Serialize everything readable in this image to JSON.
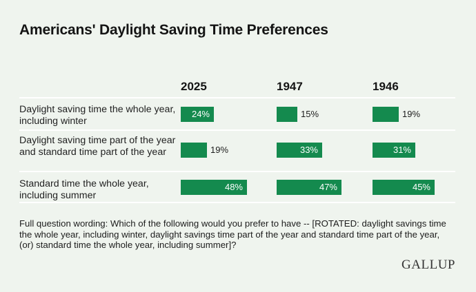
{
  "title": "Americans' Daylight Saving Time Preferences",
  "chart_data": {
    "type": "bar",
    "title": "Americans' Daylight Saving Time Preferences",
    "columns": [
      "2025",
      "1947",
      "1946"
    ],
    "categories": [
      "Daylight saving time the whole year, including winter",
      "Daylight saving time part of the year and standard time part of the year",
      "Standard time the whole year, including summer"
    ],
    "series": [
      {
        "name": "2025",
        "values": [
          24,
          19,
          48
        ]
      },
      {
        "name": "1947",
        "values": [
          15,
          33,
          47
        ]
      },
      {
        "name": "1946",
        "values": [
          19,
          31,
          45
        ]
      }
    ],
    "value_labels": [
      [
        "24%",
        "19%",
        "48%"
      ],
      [
        "15%",
        "33%",
        "47%"
      ],
      [
        "19%",
        "31%",
        "45%"
      ]
    ],
    "unit": "%",
    "bar_color": "#148a4e"
  },
  "footnote": "Full question wording: Which of the following would you prefer to have -- [ROTATED: daylight savings time the whole year, including winter, daylight savings time part of the year and standard time part of the year, (or) standard time the whole year, including summer]?",
  "brand": "GALLUP"
}
